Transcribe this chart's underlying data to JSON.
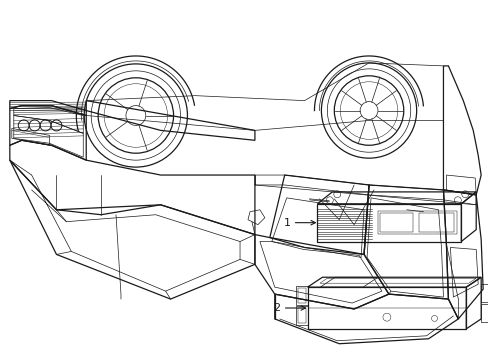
{
  "background_color": "#ffffff",
  "line_color": "#1a1a1a",
  "fig_width": 4.9,
  "fig_height": 3.6,
  "dpi": 100,
  "lw_main": 0.9,
  "lw_thin": 0.5,
  "lw_detail": 0.35,
  "label1": "1",
  "label2": "2"
}
